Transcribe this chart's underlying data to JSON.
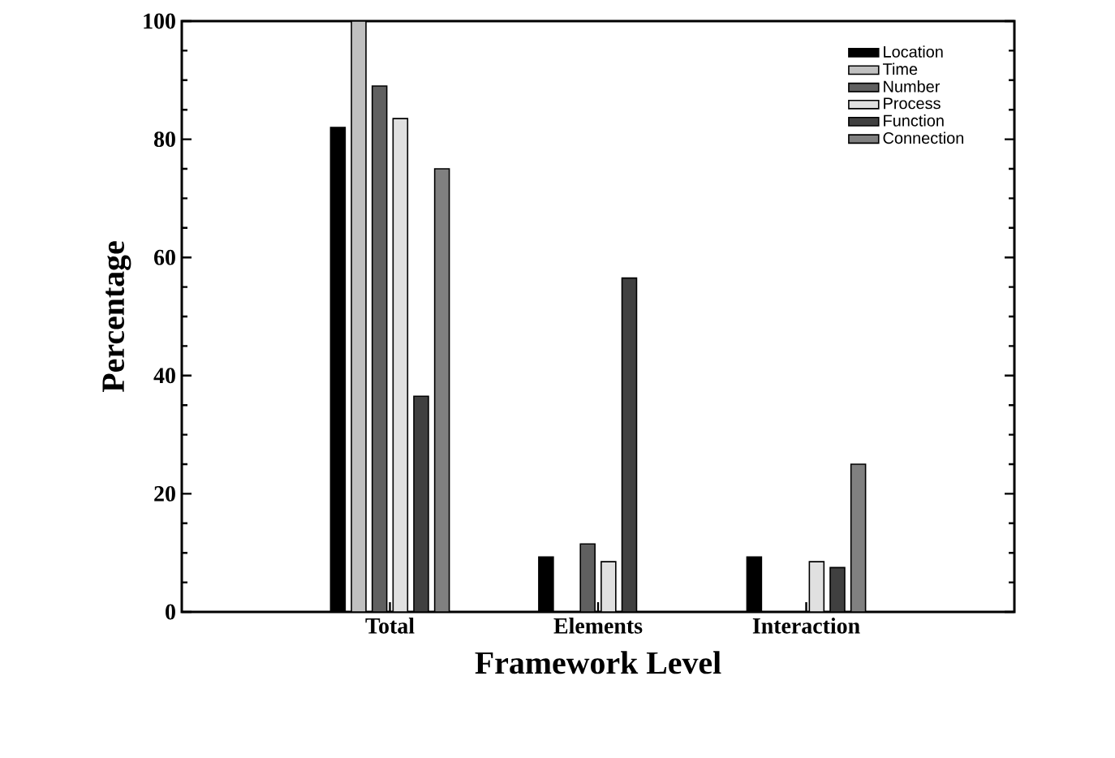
{
  "chart_data": {
    "type": "bar",
    "xlabel": "Framework Level",
    "ylabel": "Percentage",
    "categories": [
      "Total",
      "Elements",
      "Interaction"
    ],
    "series": [
      {
        "name": "Location",
        "color": "#000000",
        "values": [
          82,
          9.3,
          9.3
        ]
      },
      {
        "name": "Time",
        "color": "#c0c0c0",
        "values": [
          100,
          null,
          null
        ]
      },
      {
        "name": "Number",
        "color": "#606060",
        "values": [
          89,
          11.5,
          null
        ]
      },
      {
        "name": "Process",
        "color": "#e0e0e0",
        "values": [
          83.5,
          8.5,
          8.5
        ]
      },
      {
        "name": "Function",
        "color": "#404040",
        "values": [
          36.5,
          56.5,
          7.5
        ]
      },
      {
        "name": "Connection",
        "color": "#808080",
        "values": [
          75,
          null,
          25
        ]
      }
    ],
    "ylim": [
      0,
      100
    ],
    "yticks": [
      0,
      20,
      40,
      60,
      80,
      100
    ],
    "legend": "top right",
    "grid": false
  }
}
